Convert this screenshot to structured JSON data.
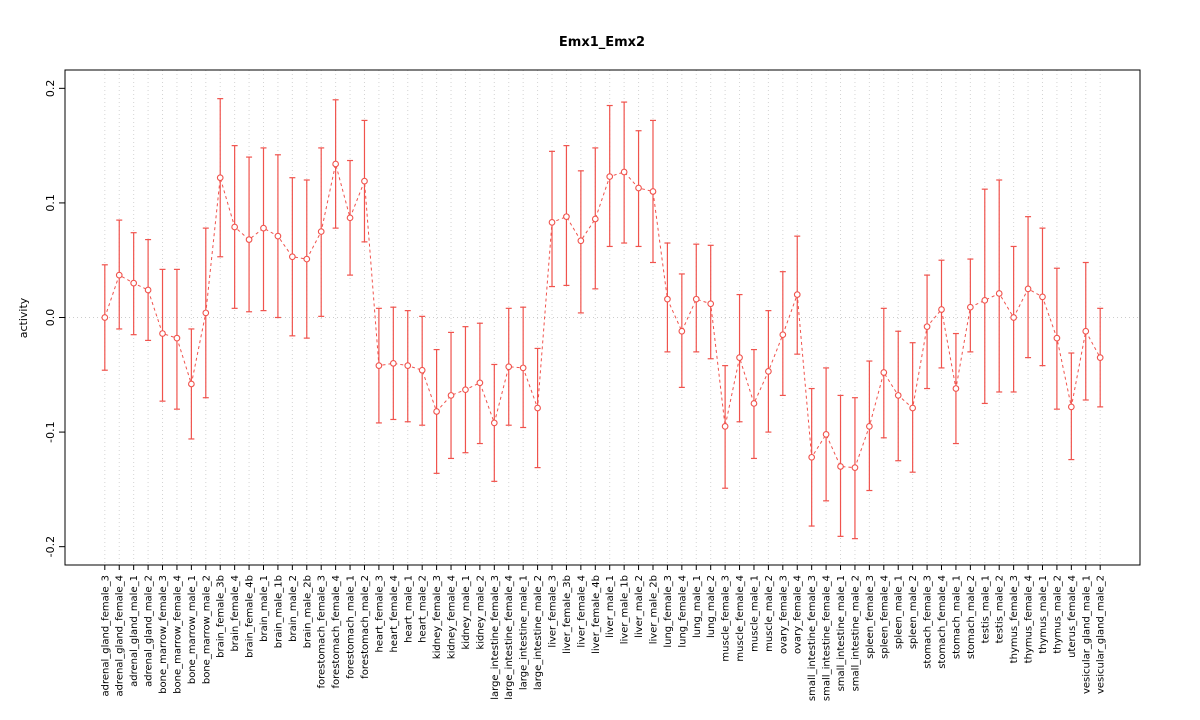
{
  "chart_data": {
    "type": "scatter",
    "title": "Emx1_Emx2",
    "ylabel": "activity",
    "xlabel": "",
    "ylim": [
      -0.2,
      0.2
    ],
    "yticks": [
      -0.2,
      -0.1,
      0.0,
      0.1,
      0.2
    ],
    "grid": "vertical-dotted-per-category, horizontal dotted line at 0",
    "legend": "none",
    "point_style": "open-circle",
    "line_style": "dashed-connecting-line",
    "error_bars": "capped vertical intervals",
    "colors": {
      "series": "#f0534d",
      "grid": "#d4d4d4",
      "zero_line": "#cccccc",
      "axis": "#000000",
      "background": "#ffffff"
    },
    "categories": [
      "adrenal_gland_female_3",
      "adrenal_gland_female_4",
      "adrenal_gland_male_1",
      "adrenal_gland_male_2",
      "bone_marrow_female_3",
      "bone_marrow_female_4",
      "bone_marrow_male_1",
      "bone_marrow_male_2",
      "brain_female_3b",
      "brain_female_4",
      "brain_female_4b",
      "brain_male_1",
      "brain_male_1b",
      "brain_male_2",
      "brain_male_2b",
      "forestomach_female_3",
      "forestomach_female_4",
      "forestomach_male_1",
      "forestomach_male_2",
      "heart_female_3",
      "heart_female_4",
      "heart_male_1",
      "heart_male_2",
      "kidney_female_3",
      "kidney_female_4",
      "kidney_male_1",
      "kidney_male_2",
      "large_intestine_female_3",
      "large_intestine_female_4",
      "large_intestine_male_1",
      "large_intestine_male_2",
      "liver_female_3",
      "liver_female_3b",
      "liver_female_4",
      "liver_female_4b",
      "liver_male_1",
      "liver_male_1b",
      "liver_male_2",
      "liver_male_2b",
      "lung_female_3",
      "lung_female_4",
      "lung_male_1",
      "lung_male_2",
      "muscle_female_3",
      "muscle_female_4",
      "muscle_male_1",
      "muscle_male_2",
      "ovary_female_3",
      "ovary_female_4",
      "small_intestine_female_3",
      "small_intestine_female_4",
      "small_intestine_male_1",
      "small_intestine_male_2",
      "spleen_female_3",
      "spleen_female_4",
      "spleen_male_1",
      "spleen_male_2",
      "stomach_female_3",
      "stomach_female_4",
      "stomach_male_1",
      "stomach_male_2",
      "testis_male_1",
      "testis_male_2",
      "thymus_female_3",
      "thymus_female_4",
      "thymus_male_1",
      "thymus_male_2",
      "uterus_female_4",
      "vesicular_gland_male_1",
      "vesicular_gland_male_2"
    ],
    "series": [
      {
        "name": "activity",
        "values": [
          0.0,
          0.037,
          0.03,
          0.024,
          -0.014,
          -0.018,
          -0.058,
          0.004,
          0.122,
          0.079,
          0.068,
          0.078,
          0.071,
          0.053,
          0.051,
          0.075,
          0.134,
          0.087,
          0.119,
          -0.042,
          -0.04,
          -0.042,
          -0.046,
          -0.082,
          -0.068,
          -0.063,
          -0.057,
          -0.092,
          -0.043,
          -0.044,
          -0.079,
          0.083,
          0.088,
          0.067,
          0.086,
          0.123,
          0.127,
          0.113,
          0.11,
          0.016,
          -0.012,
          0.016,
          0.012,
          -0.095,
          -0.035,
          -0.075,
          -0.047,
          -0.015,
          0.02,
          -0.122,
          -0.102,
          -0.13,
          -0.131,
          -0.095,
          -0.048,
          -0.068,
          -0.079,
          -0.008,
          0.007,
          -0.062,
          0.009,
          0.015,
          0.021,
          0.0,
          0.025,
          0.018,
          -0.018,
          -0.078,
          -0.012,
          -0.035
        ],
        "ci_low": [
          -0.046,
          -0.01,
          -0.015,
          -0.02,
          -0.073,
          -0.08,
          -0.106,
          -0.07,
          0.053,
          0.008,
          0.005,
          0.006,
          0.0,
          -0.016,
          -0.018,
          0.001,
          0.078,
          0.037,
          0.066,
          -0.092,
          -0.089,
          -0.091,
          -0.094,
          -0.136,
          -0.123,
          -0.118,
          -0.11,
          -0.143,
          -0.094,
          -0.096,
          -0.131,
          0.027,
          0.028,
          0.004,
          0.025,
          0.062,
          0.065,
          0.062,
          0.048,
          -0.03,
          -0.061,
          -0.03,
          -0.036,
          -0.149,
          -0.091,
          -0.123,
          -0.1,
          -0.068,
          -0.032,
          -0.182,
          -0.16,
          -0.191,
          -0.193,
          -0.151,
          -0.105,
          -0.125,
          -0.135,
          -0.062,
          -0.044,
          -0.11,
          -0.03,
          -0.075,
          -0.065,
          -0.065,
          -0.035,
          -0.042,
          -0.08,
          -0.124,
          -0.072,
          -0.078
        ],
        "ci_high": [
          0.046,
          0.085,
          0.074,
          0.068,
          0.042,
          0.042,
          -0.01,
          0.078,
          0.191,
          0.15,
          0.14,
          0.148,
          0.142,
          0.122,
          0.12,
          0.148,
          0.19,
          0.137,
          0.172,
          0.008,
          0.009,
          0.006,
          0.001,
          -0.028,
          -0.013,
          -0.008,
          -0.005,
          -0.041,
          0.008,
          0.009,
          -0.027,
          0.145,
          0.15,
          0.128,
          0.148,
          0.185,
          0.188,
          0.163,
          0.172,
          0.065,
          0.038,
          0.064,
          0.063,
          -0.042,
          0.02,
          -0.028,
          0.006,
          0.04,
          0.071,
          -0.062,
          -0.044,
          -0.068,
          -0.07,
          -0.038,
          0.008,
          -0.012,
          -0.022,
          0.037,
          0.05,
          -0.014,
          0.051,
          0.112,
          0.12,
          0.062,
          0.088,
          0.078,
          0.043,
          -0.031,
          0.048,
          0.008
        ]
      }
    ]
  }
}
